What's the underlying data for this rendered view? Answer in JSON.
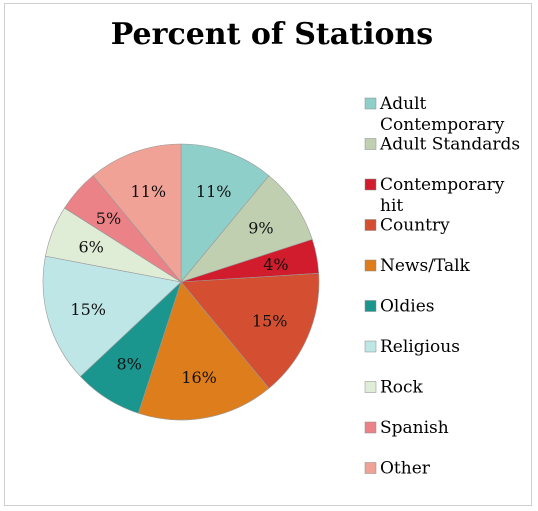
{
  "chart_data": {
    "type": "pie",
    "title": "Percent of Stations",
    "slices": [
      {
        "label": "Adult Contemporary",
        "value": 11,
        "display": "11%",
        "color": "#8fcfca"
      },
      {
        "label": "Adult Standards",
        "value": 9,
        "display": "9%",
        "color": "#bfcfb0"
      },
      {
        "label": "Contemporary hit",
        "value": 4,
        "display": "4%",
        "color": "#d01c2c"
      },
      {
        "label": "Country",
        "value": 15,
        "display": "15%",
        "color": "#d44f32"
      },
      {
        "label": "News/Talk",
        "value": 16,
        "display": "16%",
        "color": "#dd7d1c"
      },
      {
        "label": "Oldies",
        "value": 8,
        "display": "8%",
        "color": "#1a968f"
      },
      {
        "label": "Religious",
        "value": 15,
        "display": "15%",
        "color": "#bfe6e6"
      },
      {
        "label": "Rock",
        "value": 6,
        "display": "6%",
        "color": "#dfecd6"
      },
      {
        "label": "Spanish",
        "value": 5,
        "display": "5%",
        "color": "#ea8287"
      },
      {
        "label": "Other",
        "value": 11,
        "display": "11%",
        "color": "#f1a297"
      }
    ],
    "legend": {
      "position": "right",
      "entries": [
        [
          "Adult",
          "Contemporary"
        ],
        [
          "Adult Standards"
        ],
        [
          "Contemporary",
          "hit"
        ],
        [
          "Country"
        ],
        [
          "News/Talk"
        ],
        [
          "Oldies"
        ],
        [
          "Religious"
        ],
        [
          "Rock"
        ],
        [
          "Spanish"
        ],
        [
          "Other"
        ]
      ]
    }
  }
}
